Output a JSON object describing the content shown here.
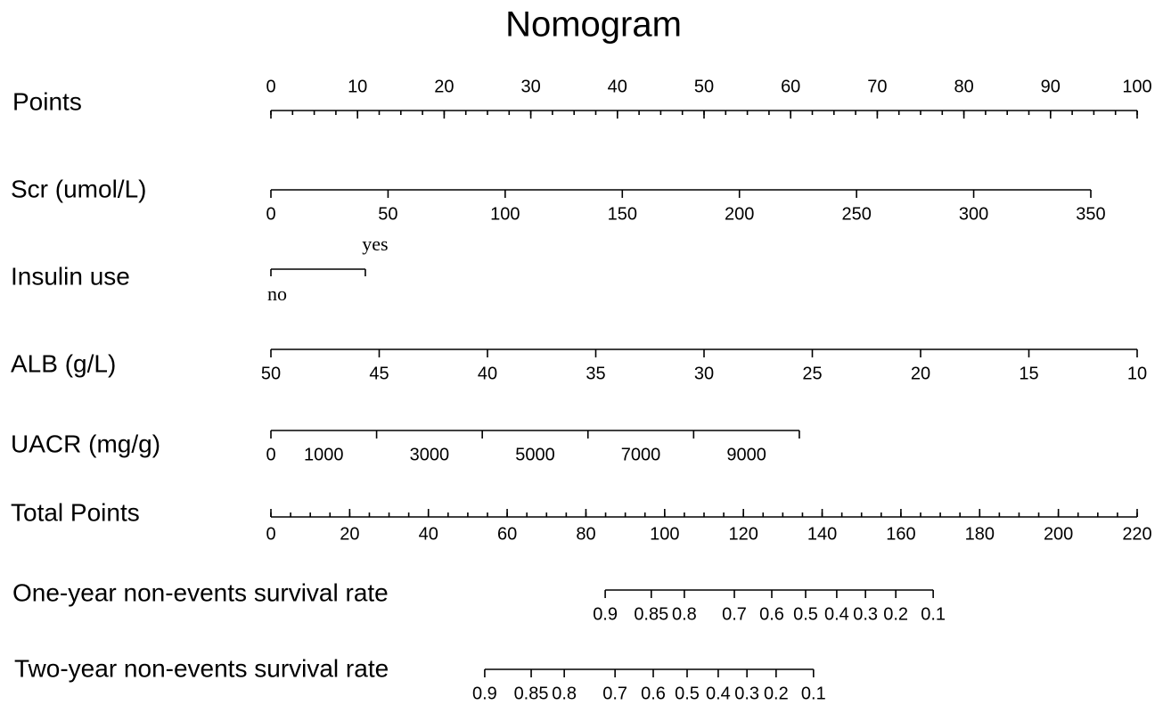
{
  "chart_data": {
    "type": "nomogram",
    "title": "Nomogram",
    "scales": [
      {
        "name": "Points",
        "axis": "points",
        "ticks": [
          0,
          10,
          20,
          30,
          40,
          50,
          60,
          70,
          80,
          90,
          100
        ],
        "range": [
          0,
          100
        ],
        "points": [
          0,
          100
        ],
        "minor_tick_step": 2.5,
        "labels_above": true
      },
      {
        "name": "Scr (umol/L)",
        "axis": "points",
        "ticks": [
          0,
          50,
          100,
          150,
          200,
          250,
          300,
          350
        ],
        "range": [
          0,
          350
        ],
        "points": [
          0,
          94.65
        ],
        "labels_above": false
      },
      {
        "name": "Insulin use",
        "axis": "points",
        "categories": [
          "no",
          "yes"
        ],
        "points": [
          0,
          10.9
        ]
      },
      {
        "name": "ALB (g/L)",
        "axis": "points",
        "ticks": [
          50,
          45,
          40,
          35,
          30,
          25,
          20,
          15,
          10
        ],
        "range": [
          50,
          10
        ],
        "points": [
          0,
          100
        ],
        "labels_above": false
      },
      {
        "name": "UACR (mg/g)",
        "axis": "points",
        "ticks": [
          0,
          2000,
          4000,
          6000,
          8000,
          10000
        ],
        "labels": [
          0,
          1000,
          3000,
          5000,
          7000,
          9000
        ],
        "range": [
          0,
          10000
        ],
        "points": [
          0,
          61.0
        ],
        "labels_above": false
      },
      {
        "name": "Total Points",
        "axis": "total",
        "ticks": [
          0,
          20,
          40,
          60,
          80,
          100,
          120,
          140,
          160,
          180,
          200,
          220
        ],
        "range": [
          0,
          220
        ],
        "points": [
          0,
          220
        ],
        "minor_tick_step": 5,
        "labels_above": false
      },
      {
        "name": "One-year non-events survival rate",
        "axis": "total",
        "ticks": [
          0.9,
          0.85,
          0.8,
          0.7,
          0.6,
          0.5,
          0.4,
          0.3,
          0.2,
          0.1
        ],
        "tick_points": [
          84.9,
          96.6,
          105.0,
          117.7,
          127.2,
          135.8,
          143.7,
          151.0,
          158.7,
          168.2
        ],
        "labels_above": false
      },
      {
        "name": "Two-year non-events survival rate",
        "axis": "total",
        "ticks": [
          0.9,
          0.85,
          0.8,
          0.7,
          0.6,
          0.5,
          0.4,
          0.3,
          0.2,
          0.1
        ],
        "tick_points": [
          54.3,
          66.1,
          74.5,
          87.4,
          97.1,
          105.7,
          113.6,
          120.9,
          128.3,
          137.8
        ],
        "labels_above": false
      }
    ]
  }
}
